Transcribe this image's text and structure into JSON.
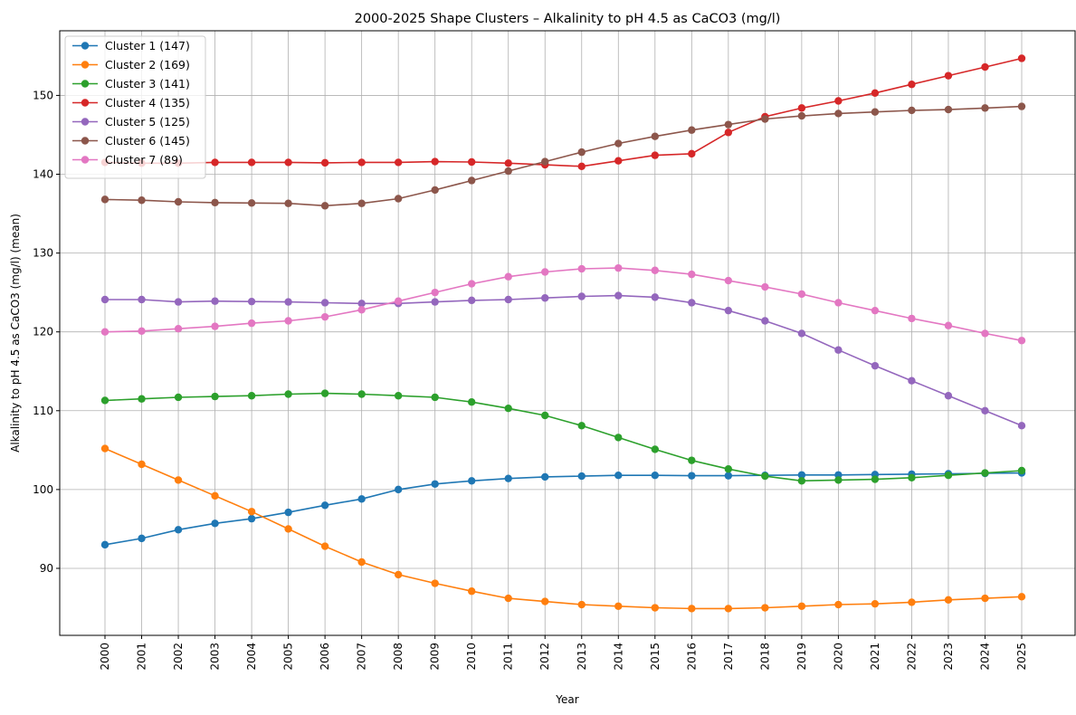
{
  "chart_data": {
    "type": "line",
    "title": "2000-2025 Shape Clusters – Alkalinity to pH 4.5 as CaCO3 (mg/l)",
    "xlabel": "Year",
    "ylabel": "Alkalinity to pH 4.5 as CaCO3 (mg/l) (mean)",
    "x": [
      "2000",
      "2001",
      "2002",
      "2003",
      "2004",
      "2005",
      "2006",
      "2007",
      "2008",
      "2009",
      "2010",
      "2011",
      "2012",
      "2013",
      "2014",
      "2015",
      "2016",
      "2017",
      "2018",
      "2019",
      "2020",
      "2021",
      "2022",
      "2023",
      "2024",
      "2025"
    ],
    "ylim": [
      81.5,
      158.2
    ],
    "yticks": [
      90,
      100,
      110,
      120,
      130,
      140,
      150
    ],
    "grid": true,
    "legend_position": "upper-left",
    "series": [
      {
        "name": "Cluster 1 (147)",
        "color": "#1f77b4",
        "values": [
          93.0,
          93.8,
          94.9,
          95.7,
          96.3,
          97.1,
          98.0,
          98.8,
          100.0,
          100.7,
          101.1,
          101.4,
          101.6,
          101.7,
          101.8,
          101.8,
          101.75,
          101.75,
          101.8,
          101.85,
          101.85,
          101.9,
          101.95,
          102.0,
          102.05,
          102.1
        ]
      },
      {
        "name": "Cluster 2 (169)",
        "color": "#ff7f0e",
        "values": [
          105.2,
          103.2,
          101.2,
          99.2,
          97.2,
          95.0,
          92.8,
          90.8,
          89.2,
          88.1,
          87.1,
          86.2,
          85.8,
          85.4,
          85.2,
          85.0,
          84.9,
          84.9,
          85.0,
          85.2,
          85.4,
          85.5,
          85.7,
          86.0,
          86.2,
          86.4
        ]
      },
      {
        "name": "Cluster 3 (141)",
        "color": "#2ca02c",
        "values": [
          111.3,
          111.5,
          111.7,
          111.8,
          111.9,
          112.1,
          112.2,
          112.1,
          111.9,
          111.7,
          111.1,
          110.3,
          109.4,
          108.1,
          106.6,
          105.1,
          103.7,
          102.6,
          101.7,
          101.1,
          101.2,
          101.3,
          101.5,
          101.8,
          102.1,
          102.4
        ]
      },
      {
        "name": "Cluster 4 (135)",
        "color": "#d62728",
        "values": [
          141.5,
          141.4,
          141.4,
          141.5,
          141.5,
          141.5,
          141.45,
          141.5,
          141.5,
          141.6,
          141.55,
          141.4,
          141.2,
          141.0,
          141.7,
          142.4,
          142.6,
          145.3,
          147.3,
          148.4,
          149.3,
          150.3,
          151.4,
          152.5,
          153.6,
          154.7
        ]
      },
      {
        "name": "Cluster 5 (125)",
        "color": "#9467bd",
        "values": [
          124.1,
          124.1,
          123.8,
          123.9,
          123.85,
          123.8,
          123.7,
          123.6,
          123.6,
          123.8,
          124.0,
          124.1,
          124.3,
          124.5,
          124.6,
          124.4,
          123.7,
          122.7,
          121.4,
          119.8,
          117.7,
          115.7,
          113.8,
          111.9,
          110.0,
          108.1
        ]
      },
      {
        "name": "Cluster 6 (145)",
        "color": "#8c564b",
        "values": [
          136.8,
          136.7,
          136.5,
          136.4,
          136.35,
          136.3,
          136.0,
          136.3,
          136.9,
          138.0,
          139.2,
          140.4,
          141.6,
          142.8,
          143.9,
          144.8,
          145.6,
          146.3,
          147.0,
          147.4,
          147.7,
          147.9,
          148.1,
          148.2,
          148.4,
          148.6
        ]
      },
      {
        "name": "Cluster 7 (89)",
        "color": "#e377c2",
        "values": [
          120.0,
          120.1,
          120.4,
          120.7,
          121.1,
          121.4,
          121.9,
          122.8,
          123.9,
          125.0,
          126.1,
          127.0,
          127.6,
          128.0,
          128.1,
          127.8,
          127.3,
          126.5,
          125.7,
          124.8,
          123.7,
          122.7,
          121.7,
          120.8,
          119.8,
          118.9
        ]
      }
    ]
  }
}
